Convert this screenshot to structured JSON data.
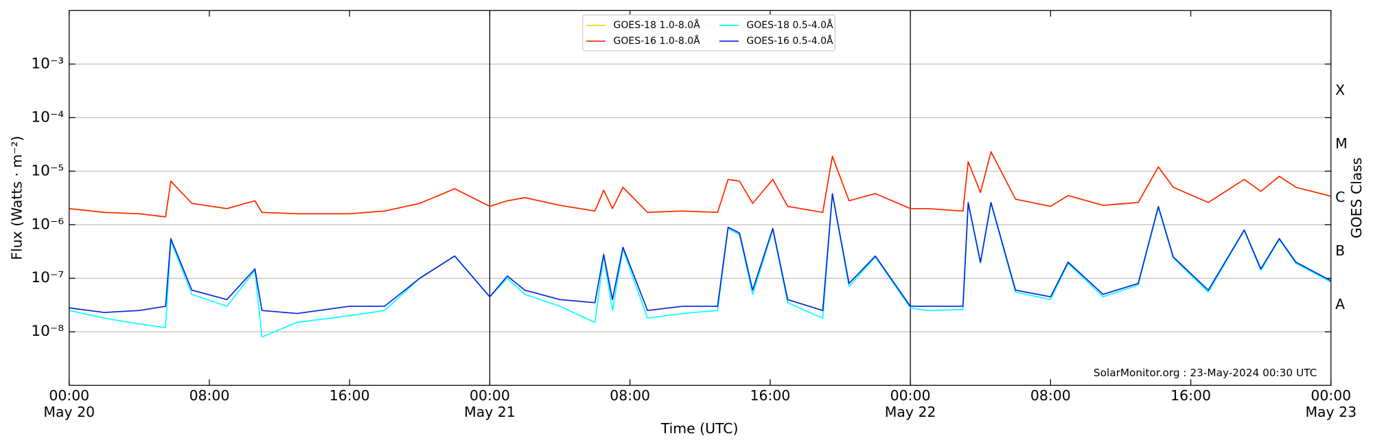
{
  "chart_data": {
    "type": "line",
    "xlabel": "Time (UTC)",
    "ylabel": "Flux (Watts · m⁻²)",
    "y2label": "GOES Class",
    "annotation": "SolarMonitor.org : 23-May-2024 00:30 UTC",
    "ylog": true,
    "grid": true,
    "legend": "upper center",
    "xlim": [
      0,
      72
    ],
    "xticks": [
      {
        "value": 0,
        "label": "00:00\nMay 20"
      },
      {
        "value": 8,
        "label": "08:00"
      },
      {
        "value": 16,
        "label": "16:00"
      },
      {
        "value": 24,
        "label": "00:00\nMay 21"
      },
      {
        "value": 32,
        "label": "08:00"
      },
      {
        "value": 40,
        "label": "16:00"
      },
      {
        "value": 48,
        "label": "00:00\nMay 22"
      },
      {
        "value": 56,
        "label": "08:00"
      },
      {
        "value": 64,
        "label": "16:00"
      },
      {
        "value": 72,
        "label": "00:00\nMay 23"
      }
    ],
    "day_lines": [
      24,
      48
    ],
    "ylim": [
      1e-09,
      0.01
    ],
    "yticks": [
      {
        "value": 1e-08,
        "label": "10⁻⁸"
      },
      {
        "value": 1e-07,
        "label": "10⁻⁷"
      },
      {
        "value": 1e-06,
        "label": "10⁻⁶"
      },
      {
        "value": 1e-05,
        "label": "10⁻⁵"
      },
      {
        "value": 0.0001,
        "label": "10⁻⁴"
      },
      {
        "value": 0.001,
        "label": "10⁻³"
      }
    ],
    "class_ticks": [
      {
        "value": 3.2e-08,
        "label": "A"
      },
      {
        "value": 3.2e-07,
        "label": "B"
      },
      {
        "value": 3.2e-06,
        "label": "C"
      },
      {
        "value": 3.2e-05,
        "label": "M"
      },
      {
        "value": 0.00032,
        "label": "X"
      }
    ],
    "x": [
      0,
      2,
      4,
      5.5,
      5.8,
      7,
      9,
      10.6,
      11,
      13,
      16,
      18,
      20,
      22,
      24,
      25,
      26,
      28,
      30,
      30.5,
      31,
      31.6,
      33,
      35,
      37,
      37.6,
      38.25,
      39,
      40.15,
      41,
      43,
      43.55,
      44.5,
      46,
      48,
      49,
      51,
      51.3,
      52,
      52.6,
      54,
      56,
      57,
      59,
      61,
      62.15,
      63,
      65,
      67.05,
      68,
      69.05,
      70,
      72
    ],
    "series": [
      {
        "name": "GOES-18 1.0-8.0Å",
        "color": "#ffd700",
        "values": [
          2e-06,
          1.7e-06,
          1.6e-06,
          1.4e-06,
          6.5e-06,
          2.5e-06,
          2e-06,
          2.8e-06,
          1.7e-06,
          1.6e-06,
          1.6e-06,
          1.8e-06,
          2.5e-06,
          4.7e-06,
          2.2e-06,
          2.8e-06,
          3.2e-06,
          2.3e-06,
          1.8e-06,
          4.4e-06,
          2e-06,
          5e-06,
          1.7e-06,
          1.8e-06,
          1.7e-06,
          7e-06,
          6.5e-06,
          2.5e-06,
          7e-06,
          2.2e-06,
          1.7e-06,
          1.9e-05,
          2.8e-06,
          3.8e-06,
          2e-06,
          2e-06,
          1.8e-06,
          1.5e-05,
          4e-06,
          2.3e-05,
          3e-06,
          2.2e-06,
          3.5e-06,
          2.3e-06,
          2.6e-06,
          1.2e-05,
          5e-06,
          2.6e-06,
          7e-06,
          4.2e-06,
          8e-06,
          5e-06,
          3.4e-06
        ]
      },
      {
        "name": "GOES-16 1.0-8.0Å",
        "color": "#ff2200",
        "values": [
          2e-06,
          1.7e-06,
          1.6e-06,
          1.4e-06,
          6.5e-06,
          2.5e-06,
          2e-06,
          2.8e-06,
          1.7e-06,
          1.6e-06,
          1.6e-06,
          1.8e-06,
          2.5e-06,
          4.7e-06,
          2.2e-06,
          2.8e-06,
          3.2e-06,
          2.3e-06,
          1.8e-06,
          4.4e-06,
          2e-06,
          5e-06,
          1.7e-06,
          1.8e-06,
          1.7e-06,
          7e-06,
          6.5e-06,
          2.5e-06,
          7e-06,
          2.2e-06,
          1.7e-06,
          1.9e-05,
          2.8e-06,
          3.8e-06,
          2e-06,
          2e-06,
          1.8e-06,
          1.5e-05,
          4e-06,
          2.3e-05,
          3e-06,
          2.2e-06,
          3.5e-06,
          2.3e-06,
          2.6e-06,
          1.2e-05,
          5e-06,
          2.6e-06,
          7e-06,
          4.2e-06,
          8e-06,
          5e-06,
          3.4e-06
        ]
      },
      {
        "name": "GOES-18 0.5-4.0Å",
        "color": "#00ffff",
        "values": [
          2.5e-08,
          1.8e-08,
          1.4e-08,
          1.2e-08,
          5e-07,
          5e-08,
          3e-08,
          1.4e-07,
          8e-09,
          1.5e-08,
          2e-08,
          2.5e-08,
          1e-07,
          2.6e-07,
          4.5e-08,
          1e-07,
          5e-08,
          3e-08,
          1.5e-08,
          2.6e-07,
          2.5e-08,
          3.5e-07,
          1.8e-08,
          2.2e-08,
          2.5e-08,
          8.5e-07,
          6.5e-07,
          5e-08,
          8e-07,
          3.5e-08,
          1.8e-08,
          3.7e-06,
          7e-08,
          2.5e-07,
          2.8e-08,
          2.5e-08,
          2.6e-08,
          2.5e-06,
          1.9e-07,
          2.5e-06,
          5.5e-08,
          4e-08,
          1.9e-07,
          4.5e-08,
          7.5e-08,
          2.1e-06,
          2.4e-07,
          5.5e-08,
          7.8e-07,
          1.4e-07,
          5.3e-07,
          1.9e-07,
          8.5e-08
        ]
      },
      {
        "name": "GOES-16 0.5-4.0Å",
        "color": "#0022dd",
        "values": [
          2.8e-08,
          2.3e-08,
          2.5e-08,
          3e-08,
          5.5e-07,
          6e-08,
          4e-08,
          1.5e-07,
          2.5e-08,
          2.2e-08,
          3e-08,
          3e-08,
          1e-07,
          2.6e-07,
          4.5e-08,
          1.1e-07,
          6e-08,
          4e-08,
          3.5e-08,
          2.8e-07,
          4e-08,
          3.8e-07,
          2.5e-08,
          3e-08,
          3e-08,
          9e-07,
          7e-07,
          6e-08,
          8.5e-07,
          4e-08,
          2.5e-08,
          3.8e-06,
          8e-08,
          2.6e-07,
          3e-08,
          3e-08,
          3e-08,
          2.6e-06,
          2e-07,
          2.6e-06,
          6e-08,
          4.5e-08,
          2e-07,
          5e-08,
          8e-08,
          2.2e-06,
          2.5e-07,
          6e-08,
          8e-07,
          1.5e-07,
          5.5e-07,
          2e-07,
          9e-08
        ]
      }
    ]
  }
}
